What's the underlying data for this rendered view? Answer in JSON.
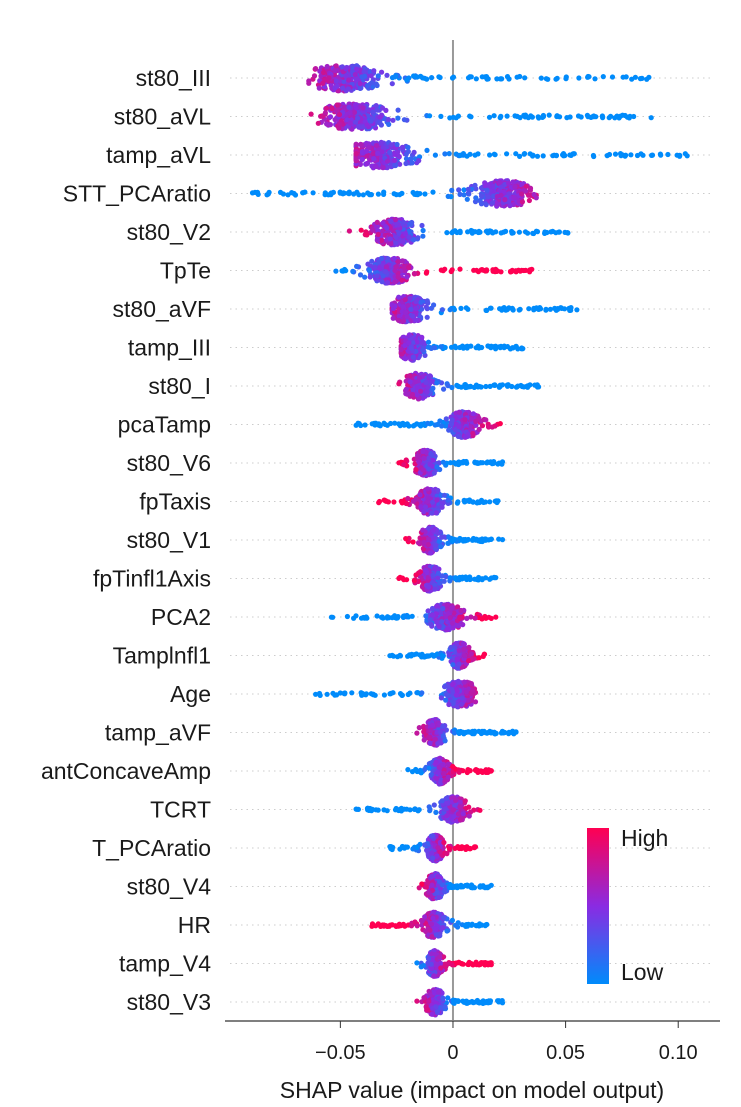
{
  "chart_data": {
    "type": "beeswarm",
    "xlabel": "SHAP value (impact on model output)",
    "xlim": [
      -0.099,
      0.115
    ],
    "xticks": [
      {
        "value": -0.05,
        "label": "−0.05"
      },
      {
        "value": 0,
        "label": "0"
      },
      {
        "value": 0.05,
        "label": "0.05"
      },
      {
        "value": 0.1,
        "label": "0.10"
      }
    ],
    "zero_line": true,
    "colors": {
      "high": "#ff0052",
      "low": "#008bfb",
      "mid": "#8a2be2",
      "zero_line": "#999999",
      "row_guide": "#cccccc"
    },
    "legend": {
      "high_label": "High",
      "low_label": "Low",
      "position": "lower-right"
    },
    "features": [
      {
        "name": "st80_III",
        "min": -0.064,
        "max": 0.087,
        "peak": -0.048,
        "low_side": "right",
        "density": 1.0
      },
      {
        "name": "st80_aVL",
        "min": -0.063,
        "max": 0.088,
        "peak": -0.043,
        "low_side": "right",
        "density": 1.0
      },
      {
        "name": "tamp_aVL",
        "min": -0.043,
        "max": 0.104,
        "peak": -0.033,
        "low_side": "right",
        "density": 0.9
      },
      {
        "name": "STT_PCAratio",
        "min": -0.089,
        "max": 0.037,
        "peak": 0.022,
        "low_side": "left",
        "density": 1.0
      },
      {
        "name": "st80_V2",
        "min": -0.046,
        "max": 0.051,
        "peak": -0.026,
        "low_side": "right",
        "density": 0.8
      },
      {
        "name": "TpTe",
        "min": -0.052,
        "max": 0.035,
        "peak": -0.028,
        "low_side": "left",
        "density": 0.9
      },
      {
        "name": "st80_aVF",
        "min": -0.027,
        "max": 0.055,
        "peak": -0.02,
        "low_side": "right",
        "density": 0.8
      },
      {
        "name": "tamp_III",
        "min": -0.023,
        "max": 0.031,
        "peak": -0.018,
        "low_side": "right",
        "density": 0.8
      },
      {
        "name": "st80_I",
        "min": -0.024,
        "max": 0.038,
        "peak": -0.015,
        "low_side": "right",
        "density": 0.8
      },
      {
        "name": "pcaTamp",
        "min": -0.043,
        "max": 0.021,
        "peak": 0.005,
        "low_side": "left",
        "density": 0.9
      },
      {
        "name": "st80_V6",
        "min": -0.024,
        "max": 0.022,
        "peak": -0.012,
        "low_side": "right",
        "density": 0.8
      },
      {
        "name": "fpTaxis",
        "min": -0.033,
        "max": 0.02,
        "peak": -0.01,
        "low_side": "right",
        "density": 0.8
      },
      {
        "name": "st80_V1",
        "min": -0.021,
        "max": 0.022,
        "peak": -0.01,
        "low_side": "right",
        "density": 0.8
      },
      {
        "name": "fpTinfl1Axis",
        "min": -0.024,
        "max": 0.019,
        "peak": -0.01,
        "low_side": "right",
        "density": 0.8
      },
      {
        "name": "PCA2",
        "min": -0.054,
        "max": 0.019,
        "peak": -0.003,
        "low_side": "left",
        "density": 0.8
      },
      {
        "name": "Tamplnfl1",
        "min": -0.028,
        "max": 0.014,
        "peak": 0.003,
        "low_side": "left",
        "density": 0.8
      },
      {
        "name": "Age",
        "min": -0.061,
        "max": 0.01,
        "peak": 0.003,
        "low_side": "left",
        "density": 0.7
      },
      {
        "name": "tamp_aVF",
        "min": -0.016,
        "max": 0.028,
        "peak": -0.008,
        "low_side": "right",
        "density": 0.8
      },
      {
        "name": "antConcaveAmp",
        "min": -0.02,
        "max": 0.017,
        "peak": -0.006,
        "low_side": "left",
        "density": 0.8
      },
      {
        "name": "TCRT",
        "min": -0.043,
        "max": 0.012,
        "peak": 0.0,
        "low_side": "left",
        "density": 0.8
      },
      {
        "name": "T_PCAratio",
        "min": -0.028,
        "max": 0.01,
        "peak": -0.008,
        "low_side": "left",
        "density": 0.8
      },
      {
        "name": "st80_V4",
        "min": -0.015,
        "max": 0.017,
        "peak": -0.008,
        "low_side": "right",
        "density": 0.8
      },
      {
        "name": "HR",
        "min": -0.036,
        "max": 0.015,
        "peak": -0.008,
        "low_side": "right",
        "density": 0.8
      },
      {
        "name": "tamp_V4",
        "min": -0.016,
        "max": 0.017,
        "peak": -0.008,
        "low_side": "left",
        "density": 0.8
      },
      {
        "name": "st80_V3",
        "min": -0.016,
        "max": 0.022,
        "peak": -0.008,
        "low_side": "right",
        "density": 0.8
      }
    ]
  }
}
